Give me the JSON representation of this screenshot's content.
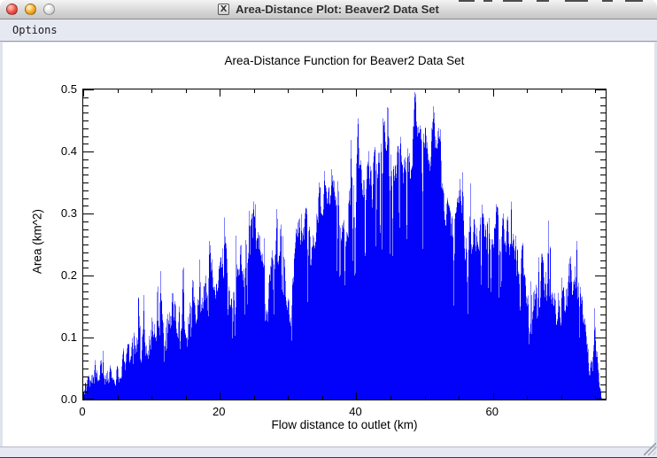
{
  "window": {
    "title": "Area-Distance Plot: Beaver2 Data Set",
    "titlebar_icon": "X",
    "menu_items": [
      "Options"
    ]
  },
  "colors": {
    "plot_fill": "#0202fa",
    "close_button": "#ee4f45",
    "minimize_button": "#f6a821",
    "zoom_button_disabled": "#dcdcdc",
    "menubar_bg": "#e6e8f2",
    "axis": "#000000"
  },
  "chart_data": {
    "type": "area",
    "title": "Area-Distance Function for Beaver2 Data Set",
    "xlabel": "Flow distance to outlet (km)",
    "ylabel": "Area (km^2)",
    "xlim": [
      0,
      76.5
    ],
    "ylim": [
      0,
      0.5
    ],
    "x_tick_labels": [
      "0",
      "20",
      "40",
      "60"
    ],
    "x_tick_values": [
      0,
      20,
      40,
      60
    ],
    "x_minor_interval": 5,
    "y_tick_labels": [
      "0.0",
      "0.1",
      "0.2",
      "0.3",
      "0.4",
      "0.5"
    ],
    "y_tick_values": [
      0,
      0.1,
      0.2,
      0.3,
      0.4,
      0.5
    ],
    "y_minor_divisions": 8,
    "grid": false,
    "legend": false,
    "points": [
      [
        0,
        0.002
      ],
      [
        0.3,
        0.028
      ],
      [
        0.5,
        0.012
      ],
      [
        0.8,
        0.035
      ],
      [
        1,
        0.02
      ],
      [
        1.3,
        0.046
      ],
      [
        1.6,
        0.024
      ],
      [
        2,
        0.052
      ],
      [
        2.3,
        0.03
      ],
      [
        2.6,
        0.066
      ],
      [
        3,
        0.034
      ],
      [
        3.4,
        0.044
      ],
      [
        3.7,
        0.026
      ],
      [
        4,
        0.05
      ],
      [
        4.4,
        0.03
      ],
      [
        4.7,
        0.022
      ],
      [
        5,
        0.056
      ],
      [
        5.4,
        0.036
      ],
      [
        5.8,
        0.072
      ],
      [
        6.2,
        0.046
      ],
      [
        6.6,
        0.088
      ],
      [
        7,
        0.062
      ],
      [
        7.4,
        0.1
      ],
      [
        7.8,
        0.072
      ],
      [
        8.2,
        0.115
      ],
      [
        8.6,
        0.082
      ],
      [
        9,
        0.096
      ],
      [
        9.4,
        0.066
      ],
      [
        9.8,
        0.09
      ],
      [
        10.2,
        0.13
      ],
      [
        10.6,
        0.1
      ],
      [
        11,
        0.118
      ],
      [
        11.3,
        0.215
      ],
      [
        11.6,
        0.13
      ],
      [
        12,
        0.102
      ],
      [
        12.4,
        0.14
      ],
      [
        12.8,
        0.115
      ],
      [
        13.2,
        0.152
      ],
      [
        13.6,
        0.12
      ],
      [
        14,
        0.136
      ],
      [
        14.4,
        0.106
      ],
      [
        14.8,
        0.13
      ],
      [
        15.2,
        0.102
      ],
      [
        15.6,
        0.14
      ],
      [
        16,
        0.19
      ],
      [
        16.4,
        0.146
      ],
      [
        16.8,
        0.166
      ],
      [
        17.2,
        0.14
      ],
      [
        17.6,
        0.156
      ],
      [
        18,
        0.186
      ],
      [
        18.6,
        0.246
      ],
      [
        19,
        0.18
      ],
      [
        19.4,
        0.156
      ],
      [
        19.8,
        0.19
      ],
      [
        20.2,
        0.23
      ],
      [
        20.6,
        0.2
      ],
      [
        21,
        0.24
      ],
      [
        21.4,
        0.186
      ],
      [
        21.8,
        0.16
      ],
      [
        22.2,
        0.14
      ],
      [
        22.6,
        0.21
      ],
      [
        23,
        0.24
      ],
      [
        23.4,
        0.2
      ],
      [
        23.8,
        0.26
      ],
      [
        24.2,
        0.22
      ],
      [
        24.6,
        0.28
      ],
      [
        25,
        0.305
      ],
      [
        25.4,
        0.26
      ],
      [
        25.8,
        0.276
      ],
      [
        26.2,
        0.24
      ],
      [
        26.6,
        0.16
      ],
      [
        27,
        0.125
      ],
      [
        27.4,
        0.19
      ],
      [
        27.8,
        0.22
      ],
      [
        28.2,
        0.246
      ],
      [
        28.6,
        0.22
      ],
      [
        29,
        0.28
      ],
      [
        29.4,
        0.23
      ],
      [
        29.8,
        0.16
      ],
      [
        30.2,
        0.13
      ],
      [
        30.6,
        0.18
      ],
      [
        31,
        0.24
      ],
      [
        31.4,
        0.29
      ],
      [
        31.8,
        0.25
      ],
      [
        32.2,
        0.28
      ],
      [
        32.6,
        0.31
      ],
      [
        33,
        0.27
      ],
      [
        33.4,
        0.22
      ],
      [
        33.8,
        0.25
      ],
      [
        34.2,
        0.3
      ],
      [
        34.6,
        0.33
      ],
      [
        35,
        0.3
      ],
      [
        35.4,
        0.345
      ],
      [
        35.8,
        0.31
      ],
      [
        36.2,
        0.33
      ],
      [
        36.6,
        0.342
      ],
      [
        37,
        0.31
      ],
      [
        37.4,
        0.33
      ],
      [
        37.8,
        0.25
      ],
      [
        38.2,
        0.3
      ],
      [
        38.6,
        0.27
      ],
      [
        39,
        0.32
      ],
      [
        39.4,
        0.36
      ],
      [
        39.8,
        0.33
      ],
      [
        40.2,
        0.44
      ],
      [
        40.5,
        0.38
      ],
      [
        40.8,
        0.35
      ],
      [
        41.2,
        0.33
      ],
      [
        41.6,
        0.38
      ],
      [
        42,
        0.36
      ],
      [
        42.4,
        0.33
      ],
      [
        42.8,
        0.41
      ],
      [
        43.2,
        0.38
      ],
      [
        43.6,
        0.4
      ],
      [
        44,
        0.44
      ],
      [
        44.4,
        0.4
      ],
      [
        44.8,
        0.42
      ],
      [
        45.2,
        0.38
      ],
      [
        45.6,
        0.35
      ],
      [
        46,
        0.4
      ],
      [
        46.4,
        0.43
      ],
      [
        46.8,
        0.38
      ],
      [
        47.2,
        0.36
      ],
      [
        47.6,
        0.4
      ],
      [
        48,
        0.37
      ],
      [
        48.4,
        0.44
      ],
      [
        48.7,
        0.49
      ],
      [
        49,
        0.42
      ],
      [
        49.4,
        0.445
      ],
      [
        49.8,
        0.41
      ],
      [
        50.2,
        0.43
      ],
      [
        50.6,
        0.38
      ],
      [
        51,
        0.42
      ],
      [
        51.4,
        0.46
      ],
      [
        51.8,
        0.4
      ],
      [
        52.2,
        0.42
      ],
      [
        52.6,
        0.35
      ],
      [
        53,
        0.29
      ],
      [
        53.4,
        0.32
      ],
      [
        53.8,
        0.3
      ],
      [
        54.2,
        0.26
      ],
      [
        54.6,
        0.3
      ],
      [
        55,
        0.34
      ],
      [
        55.4,
        0.3
      ],
      [
        55.8,
        0.26
      ],
      [
        56.2,
        0.23
      ],
      [
        56.6,
        0.27
      ],
      [
        57,
        0.24
      ],
      [
        57.4,
        0.27
      ],
      [
        57.8,
        0.25
      ],
      [
        58.2,
        0.28
      ],
      [
        58.6,
        0.3
      ],
      [
        59,
        0.27
      ],
      [
        59.4,
        0.3
      ],
      [
        59.8,
        0.26
      ],
      [
        60.2,
        0.28
      ],
      [
        60.6,
        0.31
      ],
      [
        61,
        0.27
      ],
      [
        61.4,
        0.29
      ],
      [
        61.8,
        0.26
      ],
      [
        62.2,
        0.29
      ],
      [
        62.6,
        0.25
      ],
      [
        63,
        0.27
      ],
      [
        63.4,
        0.24
      ],
      [
        63.8,
        0.21
      ],
      [
        64.2,
        0.24
      ],
      [
        64.6,
        0.2
      ],
      [
        65,
        0.15
      ],
      [
        65.4,
        0.11
      ],
      [
        65.8,
        0.14
      ],
      [
        66.2,
        0.17
      ],
      [
        66.6,
        0.15
      ],
      [
        67,
        0.19
      ],
      [
        67.4,
        0.22
      ],
      [
        67.8,
        0.18
      ],
      [
        68.2,
        0.21
      ],
      [
        68.6,
        0.18
      ],
      [
        69,
        0.16
      ],
      [
        69.4,
        0.13
      ],
      [
        69.8,
        0.15
      ],
      [
        70.2,
        0.17
      ],
      [
        70.6,
        0.14
      ],
      [
        71,
        0.18
      ],
      [
        71.4,
        0.22
      ],
      [
        71.8,
        0.19
      ],
      [
        72.2,
        0.2
      ],
      [
        72.5,
        0.16
      ],
      [
        73,
        0.17
      ],
      [
        73.3,
        0.13
      ],
      [
        73.7,
        0.1
      ],
      [
        74,
        0.06
      ],
      [
        74.4,
        0.05
      ],
      [
        74.8,
        0.075
      ],
      [
        75.1,
        0.08
      ],
      [
        75.4,
        0.05
      ],
      [
        75.7,
        0.02
      ],
      [
        75.9,
        0.002
      ]
    ]
  }
}
